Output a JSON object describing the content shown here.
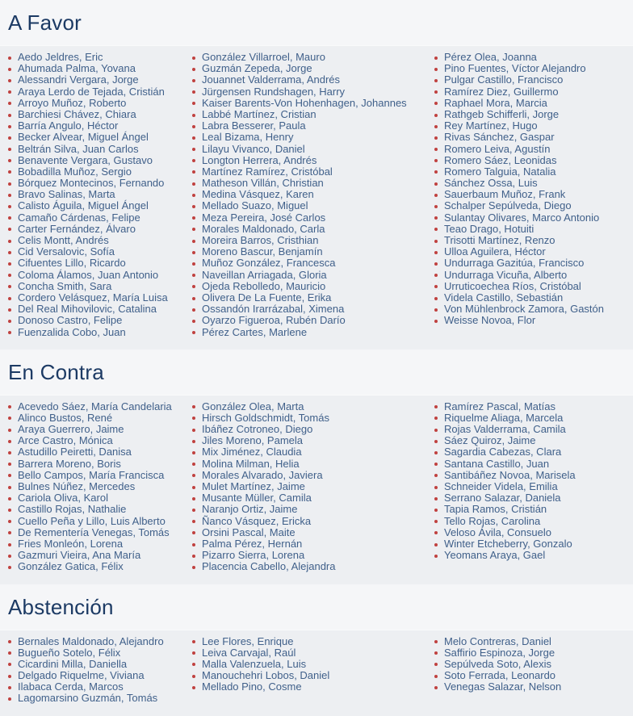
{
  "colors": {
    "accent_red": "#c0413f",
    "title_navy": "#1c3a64",
    "name_blue": "#40608a",
    "header_bg": "#f5f6f8",
    "list_bg": "#edeff2"
  },
  "sections": [
    {
      "id": "a-favor",
      "title": "A Favor",
      "columns": [
        [
          "Aedo Jeldres, Eric",
          "Ahumada Palma, Yovana",
          "Alessandri Vergara, Jorge",
          "Araya Lerdo de Tejada, Cristián",
          "Arroyo Muñoz, Roberto",
          "Barchiesi Chávez, Chiara",
          "Barría Angulo, Héctor",
          "Becker Alvear, Miguel Ángel",
          "Beltrán Silva, Juan Carlos",
          "Benavente Vergara, Gustavo",
          "Bobadilla Muñoz, Sergio",
          "Bórquez Montecinos, Fernando",
          "Bravo Salinas, Marta",
          "Calisto Águila, Miguel Ángel",
          "Camaño Cárdenas, Felipe",
          "Carter Fernández, Álvaro",
          "Celis Montt, Andrés",
          "Cid Versalovic, Sofía",
          "Cifuentes Lillo, Ricardo",
          "Coloma Álamos, Juan Antonio",
          "Concha Smith, Sara",
          "Cordero Velásquez, María Luisa",
          "Del Real Mihovilovic, Catalina",
          "Donoso Castro, Felipe",
          "Fuenzalida Cobo, Juan"
        ],
        [
          "González Villarroel, Mauro",
          "Guzmán Zepeda, Jorge",
          "Jouannet Valderrama, Andrés",
          "Jürgensen Rundshagen, Harry",
          "Kaiser Barents-Von Hohenhagen, Johannes",
          "Labbé Martínez, Cristian",
          "Labra Besserer, Paula",
          "Leal Bizama, Henry",
          "Lilayu Vivanco, Daniel",
          "Longton Herrera, Andrés",
          "Martínez Ramírez, Cristóbal",
          "Matheson Villán, Christian",
          "Medina Vásquez, Karen",
          "Mellado Suazo, Miguel",
          "Meza Pereira, José Carlos",
          "Morales Maldonado, Carla",
          "Moreira Barros, Cristhian",
          "Moreno Bascur, Benjamín",
          "Muñoz González, Francesca",
          "Naveillan Arriagada, Gloria",
          "Ojeda Rebolledo, Mauricio",
          "Olivera De La Fuente, Erika",
          "Ossandón Irarrázabal, Ximena",
          "Oyarzo Figueroa, Rubén Darío",
          "Pérez Cartes, Marlene"
        ],
        [
          "Pérez Olea, Joanna",
          "Pino Fuentes, Víctor Alejandro",
          "Pulgar Castillo, Francisco",
          "Ramírez Diez, Guillermo",
          "Raphael Mora, Marcia",
          "Rathgeb Schifferli, Jorge",
          "Rey Martínez, Hugo",
          "Rivas Sánchez, Gaspar",
          "Romero Leiva, Agustín",
          "Romero Sáez, Leonidas",
          "Romero Talguia, Natalia",
          "Sánchez Ossa, Luis",
          "Sauerbaum Muñoz, Frank",
          "Schalper Sepúlveda, Diego",
          "Sulantay Olivares, Marco Antonio",
          "Teao Drago, Hotuiti",
          "Trisotti Martínez, Renzo",
          "Ulloa Aguilera, Héctor",
          "Undurraga Gazitúa, Francisco",
          "Undurraga Vicuña, Alberto",
          "Urruticoechea Ríos, Cristóbal",
          "Videla Castillo, Sebastián",
          "Von Mühlenbrock Zamora, Gastón",
          "Weisse Novoa, Flor"
        ]
      ]
    },
    {
      "id": "en-contra",
      "title": "En Contra",
      "columns": [
        [
          "Acevedo Sáez, María Candelaria",
          "Alinco Bustos, René",
          "Araya Guerrero, Jaime",
          "Arce Castro, Mónica",
          "Astudillo Peiretti, Danisa",
          "Barrera Moreno, Boris",
          "Bello Campos, María Francisca",
          "Bulnes Núñez, Mercedes",
          "Cariola Oliva, Karol",
          "Castillo Rojas, Nathalie",
          "Cuello Peña y Lillo, Luis Alberto",
          "De Rementería Venegas, Tomás",
          "Fries Monleón, Lorena",
          "Gazmuri Vieira, Ana María",
          "González Gatica, Félix"
        ],
        [
          "González Olea, Marta",
          "Hirsch Goldschmidt, Tomás",
          "Ibáñez Cotroneo, Diego",
          "Jiles Moreno, Pamela",
          "Mix Jiménez, Claudia",
          "Molina Milman, Helia",
          "Morales Alvarado, Javiera",
          "Mulet Martínez, Jaime",
          "Musante Müller, Camila",
          "Naranjo Ortiz, Jaime",
          "Ñanco Vásquez, Ericka",
          "Orsini Pascal, Maite",
          "Palma Pérez, Hernán",
          "Pizarro Sierra, Lorena",
          "Placencia Cabello, Alejandra"
        ],
        [
          "Ramírez Pascal, Matías",
          "Riquelme Aliaga, Marcela",
          "Rojas Valderrama, Camila",
          "Sáez Quiroz, Jaime",
          "Sagardia Cabezas, Clara",
          "Santana Castillo, Juan",
          "Santibáñez Novoa, Marisela",
          "Schneider Videla, Emilia",
          "Serrano Salazar, Daniela",
          "Tapia Ramos, Cristián",
          "Tello Rojas, Carolina",
          "Veloso Ávila, Consuelo",
          "Winter Etcheberry, Gonzalo",
          "Yeomans Araya, Gael"
        ]
      ]
    },
    {
      "id": "abstencion",
      "title": "Abstención",
      "columns": [
        [
          "Bernales Maldonado, Alejandro",
          "Bugueño Sotelo, Félix",
          "Cicardini Milla, Daniella",
          "Delgado Riquelme, Viviana",
          "Ilabaca Cerda, Marcos",
          "Lagomarsino Guzmán, Tomás"
        ],
        [
          "Lee Flores, Enrique",
          "Leiva Carvajal, Raúl",
          "Malla Valenzuela, Luis",
          "Manouchehri Lobos, Daniel",
          "Mellado Pino, Cosme"
        ],
        [
          "Melo Contreras, Daniel",
          "Saffirio Espinoza, Jorge",
          "Sepúlveda Soto, Alexis",
          "Soto Ferrada, Leonardo",
          "Venegas Salazar, Nelson"
        ]
      ]
    }
  ]
}
